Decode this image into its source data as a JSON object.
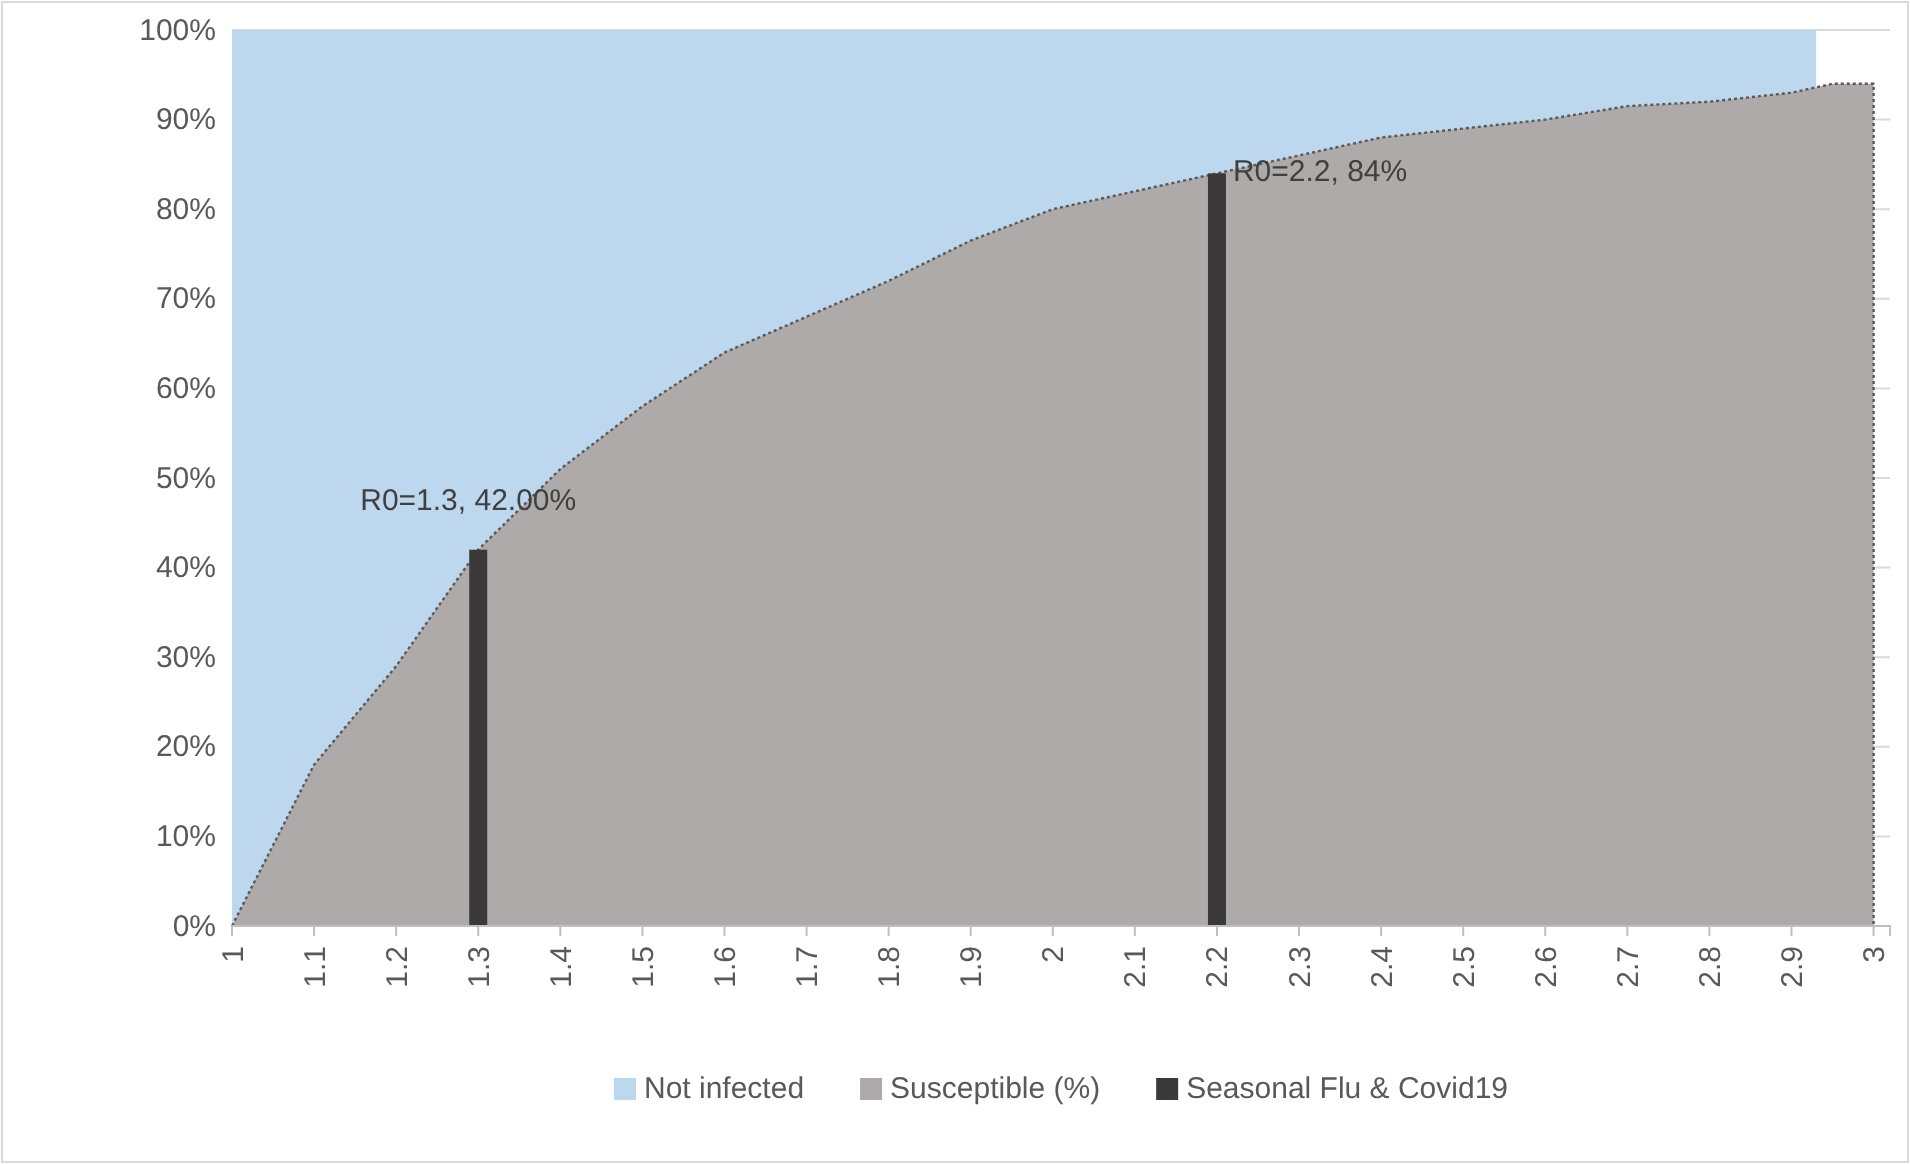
{
  "chart_data": {
    "type": "area",
    "xlim": [
      1,
      3.02
    ],
    "xticks": [
      1,
      1.1,
      1.2,
      1.3,
      1.4,
      1.5,
      1.6,
      1.7,
      1.8,
      1.9,
      2,
      2.1,
      2.2,
      2.3,
      2.4,
      2.5,
      2.6,
      2.7,
      2.8,
      2.9,
      3
    ],
    "ylim": [
      0,
      100
    ],
    "yticks": [
      {
        "value": 0,
        "label": "0%"
      },
      {
        "value": 10,
        "label": "10%"
      },
      {
        "value": 20,
        "label": "20%"
      },
      {
        "value": 30,
        "label": "30%"
      },
      {
        "value": 40,
        "label": "40%"
      },
      {
        "value": 50,
        "label": "50%"
      },
      {
        "value": 60,
        "label": "60%"
      },
      {
        "value": 70,
        "label": "70%"
      },
      {
        "value": 80,
        "label": "80%"
      },
      {
        "value": 90,
        "label": "90%"
      },
      {
        "value": 100,
        "label": "100%"
      }
    ],
    "grid": "y",
    "legend": "bottom",
    "series": [
      {
        "name": "Not infected",
        "color": "#bdd7ee",
        "x": [
          1,
          1.1,
          1.2,
          1.3,
          1.4,
          1.5,
          1.6,
          1.7,
          1.8,
          1.9,
          2,
          2.1,
          2.2,
          2.3,
          2.4,
          2.5,
          2.6,
          2.7,
          2.8,
          2.9,
          2.93
        ],
        "values": [
          100,
          100,
          100,
          100,
          100,
          100,
          100,
          100,
          100,
          100,
          100,
          100,
          100,
          100,
          100,
          100,
          100,
          100,
          100,
          100,
          100
        ]
      },
      {
        "name": "Susceptible (%)",
        "color": "#aeaaaa",
        "line_style": "dotted",
        "x": [
          1,
          1.1,
          1.2,
          1.3,
          1.4,
          1.5,
          1.6,
          1.7,
          1.8,
          1.9,
          2,
          2.1,
          2.2,
          2.3,
          2.4,
          2.5,
          2.6,
          2.7,
          2.8,
          2.9,
          2.95,
          3
        ],
        "values": [
          0,
          18,
          29,
          42,
          51,
          58,
          64,
          68,
          72,
          76.5,
          80,
          82,
          84,
          86,
          88,
          89,
          90,
          91.5,
          92,
          93,
          94,
          94
        ]
      },
      {
        "name": "Seasonal Flu & Covid19",
        "type": "bar",
        "color": "#3a3838",
        "x": [
          1.3,
          2.2
        ],
        "values": [
          42,
          84
        ]
      }
    ],
    "annotations": [
      {
        "text": "R0=1.3, 42.00%",
        "x": 1.3,
        "y": 42
      },
      {
        "text": "R0=2.2, 84%",
        "x": 2.2,
        "y": 84
      }
    ]
  }
}
